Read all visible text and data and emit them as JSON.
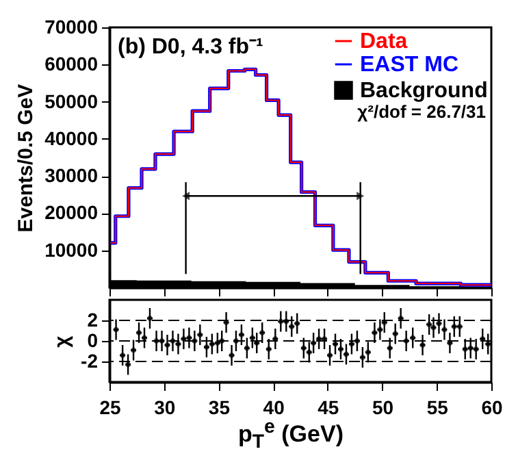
{
  "chart_data": [
    {
      "type": "step",
      "ylabel": "Events/0.5 GeV",
      "xlim": [
        25,
        60
      ],
      "ylim": [
        0,
        70000
      ],
      "xticks": [
        25,
        30,
        35,
        40,
        45,
        50,
        55,
        60
      ],
      "yticks": [
        10000,
        20000,
        30000,
        40000,
        50000,
        60000,
        70000
      ],
      "tick_labels": "y",
      "legend": "top right",
      "annotations": [
        "(b) D0, 4.3 fb⁻¹",
        "χ²/dof = 26.7/31"
      ],
      "ref_lines": [
        {
          "axis": "x",
          "value": 32
        },
        {
          "axis": "x",
          "value": 48
        }
      ],
      "series": [
        {
          "name": "Data",
          "type": "step",
          "color": "#ff0000",
          "x": [
            25.1,
            26,
            27.5,
            28.4,
            30,
            31.8,
            33.4,
            35,
            36.8,
            38,
            38.8,
            40,
            41,
            42.2,
            43,
            44.7,
            46.3,
            47.6,
            49.3,
            51.8,
            54.4,
            60
          ],
          "values": [
            12000,
            19200,
            26800,
            31900,
            35900,
            42000,
            47500,
            53600,
            58300,
            58700,
            57200,
            50400,
            46400,
            33700,
            25700,
            16700,
            10100,
            6900,
            4000,
            1800,
            1100,
            700
          ]
        },
        {
          "name": "EAST MC",
          "type": "step",
          "color": "#0000ff",
          "x": [
            25.1,
            26,
            27.5,
            28.4,
            30,
            31.8,
            33.4,
            35,
            36.8,
            38,
            38.8,
            40,
            41,
            42.2,
            43,
            44.7,
            46.3,
            47.6,
            49.3,
            51.8,
            54.4,
            60
          ],
          "values": [
            12000,
            19200,
            26800,
            31900,
            35900,
            42000,
            47500,
            53600,
            58300,
            58700,
            57200,
            50400,
            46400,
            33700,
            25700,
            16700,
            10100,
            6900,
            4000,
            1800,
            1100,
            700
          ]
        },
        {
          "name": "Background",
          "type": "area",
          "color": "#000000",
          "x": [
            25,
            30,
            35,
            40,
            45,
            50,
            55,
            60
          ],
          "values": [
            2000,
            1900,
            1700,
            1500,
            1200,
            700,
            300,
            100
          ]
        }
      ]
    },
    {
      "type": "scatter",
      "ylabel": "χ",
      "xlabel": "p$_{T}$$^{e}$ (GeV)",
      "xlim": [
        25,
        60
      ],
      "ylim": [
        -4,
        4
      ],
      "xticks": [
        25,
        30,
        35,
        40,
        45,
        50,
        55,
        60
      ],
      "yticks": [
        -2,
        0,
        2
      ],
      "ref_lines": [
        {
          "axis": "y",
          "value": -2,
          "line_style": "dashed"
        },
        {
          "axis": "y",
          "value": 0,
          "line_style": "dashed"
        },
        {
          "axis": "y",
          "value": 2,
          "line_style": "dashed"
        }
      ],
      "series": [
        {
          "color": "#000000",
          "x": [
            25.6,
            26.2,
            26.7,
            27.2,
            27.7,
            28.2,
            28.7,
            29.3,
            29.8,
            30.3,
            30.8,
            31.3,
            31.8,
            32.3,
            32.8,
            33.3,
            33.9,
            34.4,
            34.9,
            35.3,
            35.7,
            36.2,
            36.6,
            37.1,
            37.6,
            38.1,
            38.5,
            39.0,
            39.6,
            40.2,
            40.7,
            41.2,
            41.7,
            42.2,
            42.8,
            43.3,
            43.7,
            44.2,
            44.7,
            45.2,
            45.7,
            46.2,
            46.7,
            47.2,
            47.7,
            48.2,
            48.7,
            49.3,
            49.8,
            50.2,
            50.7,
            51.2,
            51.7,
            52.2,
            52.8,
            53.7,
            54.3,
            54.7,
            55.2,
            55.7,
            56.2,
            56.6,
            57.1,
            57.6,
            58.1,
            58.6,
            59.2,
            59.7
          ],
          "values": [
            1.1,
            -1.4,
            -2.3,
            -0.9,
            0.8,
            0.3,
            2.2,
            0,
            0,
            -0.4,
            0,
            -0.3,
            0.2,
            0.3,
            0,
            0.6,
            -0.6,
            -0.3,
            -0.2,
            0,
            1.8,
            -1.4,
            0,
            0.6,
            -0.7,
            0.3,
            -0.2,
            0.8,
            -0.8,
            0.2,
            1.9,
            1.9,
            1.4,
            1.7,
            -0.7,
            -1.1,
            -0.2,
            0.2,
            0.2,
            -1.4,
            -0.3,
            -0.8,
            -1.3,
            -0.3,
            0,
            -1.6,
            -1.1,
            0.8,
            1.1,
            1.8,
            -0.7,
            0.7,
            2.2,
            0,
            0.3,
            -0.4,
            1.6,
            1.3,
            1.7,
            1.1,
            -0.2,
            1.4,
            1.4,
            -0.8,
            -0.7,
            -0.8,
            0.2,
            -0.3
          ],
          "errors": [
            1,
            1,
            1,
            1,
            1,
            1,
            1,
            1,
            1,
            1,
            1,
            1,
            1,
            1,
            1,
            1,
            1,
            1,
            1,
            1,
            1,
            1,
            1,
            1,
            1,
            1,
            1,
            1,
            1,
            1,
            1,
            1,
            1,
            1,
            1,
            1,
            1,
            1,
            1,
            1,
            1,
            1,
            1,
            1,
            1,
            1,
            1,
            1,
            1,
            1,
            1,
            1,
            1,
            1,
            1,
            1,
            1,
            1,
            1,
            1,
            1,
            1,
            1,
            1,
            1,
            1,
            1,
            1
          ],
          "xerrors": [
            0.25,
            0.25,
            0.25,
            0.25,
            0.25,
            0.25,
            0.25,
            0.25,
            0.25,
            0.25,
            0.25,
            0.25,
            0.25,
            0.25,
            0.25,
            0.25,
            0.25,
            0.25,
            0.25,
            0.25,
            0.25,
            0.25,
            0.25,
            0.25,
            0.25,
            0.25,
            0.25,
            0.25,
            0.25,
            0.25,
            0.25,
            0.25,
            0.25,
            0.25,
            0.25,
            0.25,
            0.25,
            0.25,
            0.25,
            0.25,
            0.25,
            0.25,
            0.25,
            0.25,
            0.25,
            0.25,
            0.25,
            0.25,
            0.25,
            0.25,
            0.25,
            0.25,
            0.25,
            0.25,
            0.25,
            0.25,
            0.25,
            0.25,
            0.25,
            0.25,
            0.25,
            0.25,
            0.25,
            0.25,
            0.25,
            0.25,
            0.25,
            0.25
          ]
        }
      ]
    }
  ]
}
